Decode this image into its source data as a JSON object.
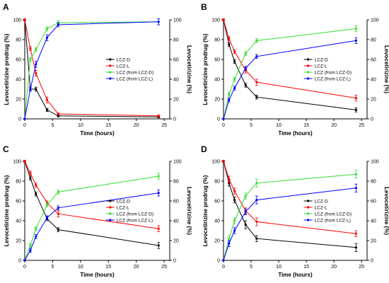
{
  "figure": {
    "colors": {
      "LCZ-D": "#000000",
      "LCZ-L": "#ff0000",
      "LCZ (from LCZ-D)": "#33dd33",
      "LCZ (from LCZ-L)": "#0000ff"
    }
  },
  "chart_data": [
    {
      "panel": "A",
      "type": "line",
      "xlabel": "Time (hours)",
      "ylabel": "Levocetirizine prodrug (%)",
      "ylabel_right": "Levocetirizine (%)",
      "xlim": [
        0,
        26
      ],
      "ylim": [
        0,
        100
      ],
      "xticks": [
        0,
        5,
        10,
        15,
        20,
        25
      ],
      "yticks": [
        0,
        20,
        40,
        60,
        80,
        100
      ],
      "legend_position": "center-right",
      "series": [
        {
          "name": "LCZ-D",
          "x": [
            0,
            1,
            2,
            4,
            6,
            24
          ],
          "y": [
            100,
            30,
            30,
            9,
            3,
            2
          ],
          "err": [
            1,
            2,
            2,
            1.5,
            1,
            1
          ]
        },
        {
          "name": "LCZ-L",
          "x": [
            0,
            1,
            2,
            4,
            6,
            24
          ],
          "y": [
            100,
            71,
            46,
            19,
            5,
            3
          ],
          "err": [
            1,
            2,
            3,
            3,
            1,
            1
          ]
        },
        {
          "name": "LCZ (from LCZ-D)",
          "x": [
            0,
            1,
            2,
            4,
            6,
            24
          ],
          "y": [
            0,
            60,
            70,
            91,
            97,
            98
          ],
          "err": [
            0,
            2,
            2,
            2,
            2,
            3
          ]
        },
        {
          "name": "LCZ (from LCZ-L)",
          "x": [
            0,
            1,
            2,
            4,
            6,
            24
          ],
          "y": [
            0,
            30,
            55,
            82,
            95,
            98
          ],
          "err": [
            0,
            2,
            3,
            3,
            2,
            3
          ]
        }
      ]
    },
    {
      "panel": "B",
      "type": "line",
      "xlabel": "Time (hours)",
      "ylabel": "Levocetirizine prodrug (%)",
      "ylabel_right": "Levocetirizine (%)",
      "xlim": [
        0,
        26
      ],
      "ylim": [
        0,
        100
      ],
      "xticks": [
        0,
        5,
        10,
        15,
        20,
        25
      ],
      "yticks": [
        0,
        20,
        40,
        60,
        80,
        100
      ],
      "legend_position": "center-right",
      "series": [
        {
          "name": "LCZ-D",
          "x": [
            0,
            1,
            2,
            4,
            6,
            24
          ],
          "y": [
            100,
            75,
            58,
            34,
            22,
            9
          ],
          "err": [
            1,
            2,
            2,
            2,
            2,
            2
          ]
        },
        {
          "name": "LCZ-L",
          "x": [
            0,
            1,
            2,
            4,
            6,
            24
          ],
          "y": [
            100,
            81,
            68,
            49,
            37,
            21
          ],
          "err": [
            1,
            2,
            2,
            3,
            3,
            3
          ]
        },
        {
          "name": "LCZ (from LCZ-D)",
          "x": [
            0,
            1,
            2,
            4,
            6,
            24
          ],
          "y": [
            0,
            25,
            40,
            66,
            79,
            91
          ],
          "err": [
            0,
            2,
            2,
            2,
            2,
            3
          ]
        },
        {
          "name": "LCZ (from LCZ-L)",
          "x": [
            0,
            1,
            2,
            4,
            6,
            24
          ],
          "y": [
            0,
            19,
            31,
            51,
            63,
            79
          ],
          "err": [
            0,
            2,
            2,
            2,
            2,
            3
          ]
        }
      ]
    },
    {
      "panel": "C",
      "type": "line",
      "xlabel": "Time (hours)",
      "ylabel": "Levocetirizine prodrug (%)",
      "ylabel_right": "Levocetirizine (%)",
      "xlim": [
        0,
        26
      ],
      "ylim": [
        0,
        100
      ],
      "xticks": [
        0,
        5,
        10,
        15,
        20,
        25
      ],
      "yticks": [
        0,
        20,
        40,
        60,
        80,
        100
      ],
      "legend_position": "center-right",
      "series": [
        {
          "name": "LCZ-D",
          "x": [
            0,
            1,
            2,
            4,
            6,
            24
          ],
          "y": [
            100,
            83,
            67,
            42,
            31,
            15
          ],
          "err": [
            1,
            2,
            2,
            2,
            2,
            3
          ]
        },
        {
          "name": "LCZ-L",
          "x": [
            0,
            1,
            2,
            4,
            6,
            24
          ],
          "y": [
            100,
            88,
            76,
            58,
            47,
            32
          ],
          "err": [
            1,
            2,
            2,
            2,
            3,
            3
          ]
        },
        {
          "name": "LCZ (from LCZ-D)",
          "x": [
            0,
            1,
            2,
            4,
            6,
            24
          ],
          "y": [
            0,
            15,
            32,
            56,
            69,
            85
          ],
          "err": [
            0,
            2,
            2,
            2,
            2,
            3
          ]
        },
        {
          "name": "LCZ (from LCZ-L)",
          "x": [
            0,
            1,
            2,
            4,
            6,
            24
          ],
          "y": [
            0,
            10,
            24,
            43,
            53,
            68
          ],
          "err": [
            0,
            2,
            2,
            2,
            2,
            3
          ]
        }
      ]
    },
    {
      "panel": "D",
      "type": "line",
      "xlabel": "Time (hours)",
      "ylabel": "Levocetirizine prodrug (%)",
      "ylabel_right": "Levocetirizine (%)",
      "xlim": [
        0,
        26
      ],
      "ylim": [
        0,
        100
      ],
      "xticks": [
        0,
        5,
        10,
        15,
        20,
        25
      ],
      "yticks": [
        0,
        20,
        40,
        60,
        80,
        100
      ],
      "legend_position": "center-right",
      "series": [
        {
          "name": "LCZ-D",
          "x": [
            0,
            1,
            2,
            4,
            6,
            24
          ],
          "y": [
            100,
            78,
            61,
            36,
            22,
            13
          ],
          "err": [
            1,
            3,
            3,
            4,
            3,
            4
          ]
        },
        {
          "name": "LCZ-L",
          "x": [
            0,
            1,
            2,
            4,
            6,
            24
          ],
          "y": [
            100,
            82,
            70,
            50,
            39,
            27
          ],
          "err": [
            1,
            3,
            3,
            3,
            4,
            3
          ]
        },
        {
          "name": "LCZ (from LCZ-D)",
          "x": [
            0,
            1,
            2,
            4,
            6,
            24
          ],
          "y": [
            0,
            22,
            40,
            65,
            78,
            87
          ],
          "err": [
            0,
            3,
            3,
            3,
            4,
            4
          ]
        },
        {
          "name": "LCZ (from LCZ-L)",
          "x": [
            0,
            1,
            2,
            4,
            6,
            24
          ],
          "y": [
            0,
            17,
            30,
            49,
            61,
            73
          ],
          "err": [
            0,
            3,
            3,
            3,
            4,
            4
          ]
        }
      ]
    }
  ]
}
